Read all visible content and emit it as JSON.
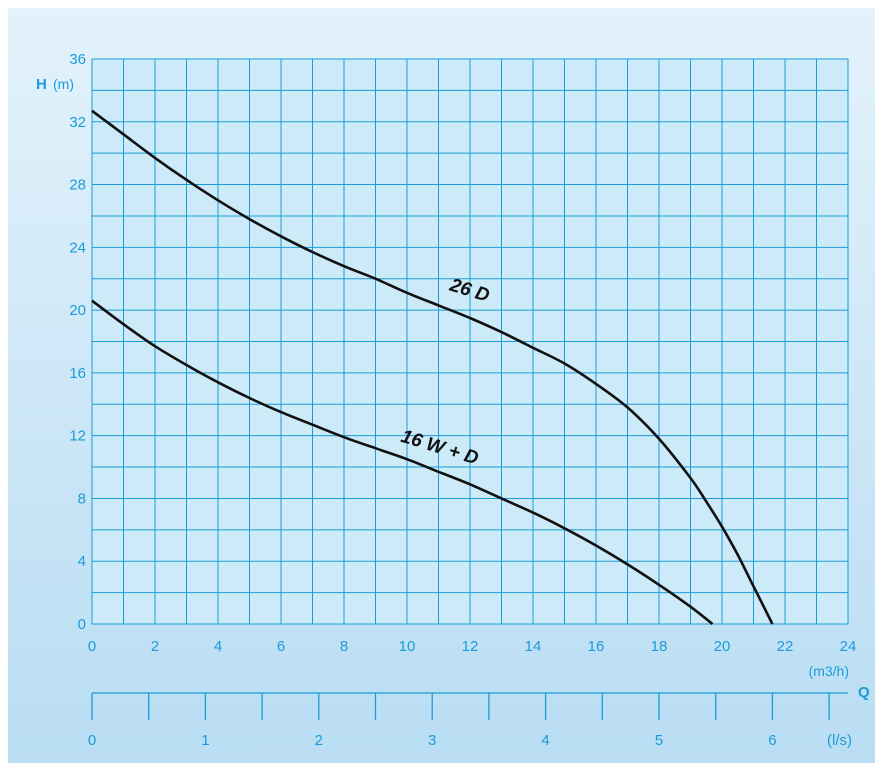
{
  "colors": {
    "panel": "#c9e6f6",
    "panel_top": "#e3f2fb",
    "plot_bg": "#cdeaf9",
    "grid": "#1a9cd8",
    "accent": "#1a9cd8",
    "curve": "#111111"
  },
  "chart_data": {
    "type": "line",
    "y_axis": {
      "letter": "H",
      "unit": "(m)",
      "range": [
        0,
        36
      ],
      "ticks": [
        0,
        4,
        8,
        12,
        16,
        20,
        24,
        28,
        32,
        36
      ],
      "minor_step": 2
    },
    "x_axis": {
      "unit": "(m3/h)",
      "range": [
        0,
        24
      ],
      "ticks": [
        0,
        2,
        4,
        6,
        8,
        10,
        12,
        14,
        16,
        18,
        20,
        22,
        24
      ],
      "minor_step": 1
    },
    "x2_axis": {
      "label": "Q",
      "unit": "(l/s)",
      "ticks": [
        0,
        1,
        2,
        3,
        4,
        5,
        6
      ],
      "minor_step": 0.5
    },
    "grid": true,
    "series": [
      {
        "name": "26 D",
        "x": [
          0,
          1,
          2,
          3,
          4,
          5,
          6,
          7,
          8,
          9,
          10,
          11,
          12,
          13,
          14,
          15,
          16,
          17,
          18,
          19,
          19.5,
          20,
          20.5,
          21,
          21.6
        ],
        "y": [
          32.7,
          31.2,
          29.7,
          28.3,
          27.0,
          25.8,
          24.7,
          23.7,
          22.8,
          22.0,
          21.1,
          20.3,
          19.5,
          18.6,
          17.6,
          16.6,
          15.3,
          13.8,
          11.8,
          9.3,
          7.8,
          6.2,
          4.4,
          2.4,
          0
        ]
      },
      {
        "name": "16 W + D",
        "x": [
          0,
          1,
          2,
          3,
          4,
          5,
          6,
          7,
          8,
          9,
          10,
          11,
          12,
          13,
          14,
          15,
          16,
          17,
          18,
          19,
          19.7
        ],
        "y": [
          20.6,
          19.1,
          17.7,
          16.5,
          15.4,
          14.4,
          13.5,
          12.7,
          11.9,
          11.2,
          10.5,
          9.7,
          8.9,
          8.0,
          7.1,
          6.1,
          5.0,
          3.8,
          2.5,
          1.1,
          0
        ]
      }
    ]
  }
}
